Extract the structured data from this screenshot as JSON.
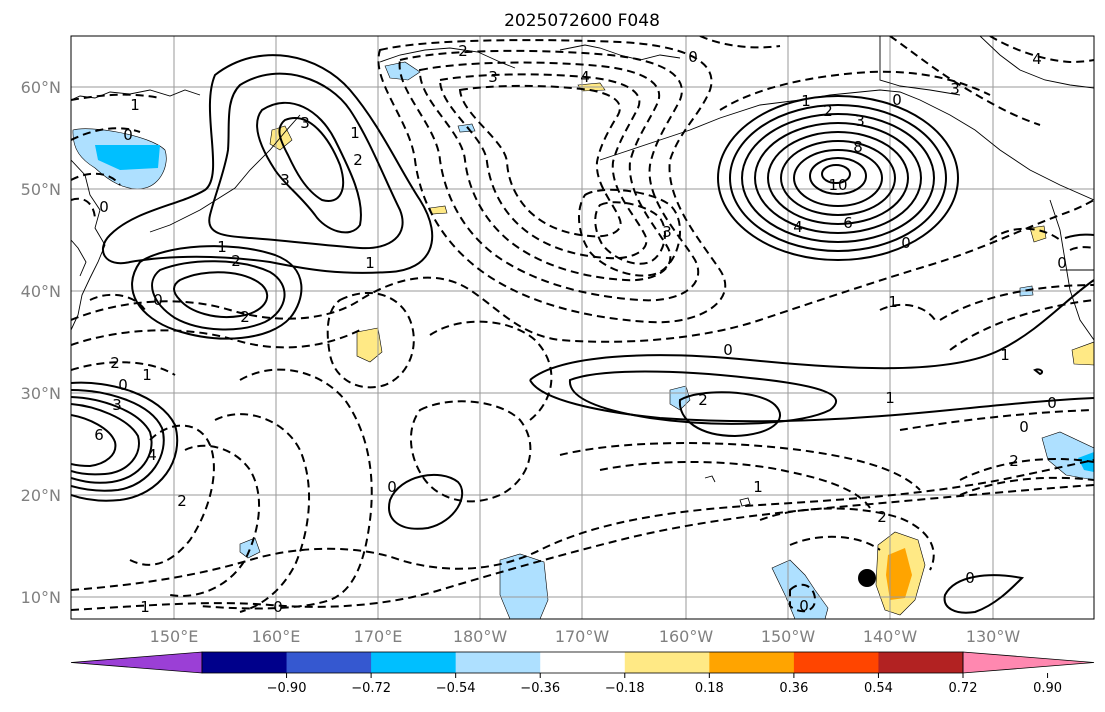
{
  "title": "2025072600 F048",
  "lat_labels": [
    "10°N",
    "20°N",
    "30°N",
    "40°N",
    "50°N",
    "60°N"
  ],
  "lon_labels": [
    "150°E",
    "160°E",
    "170°E",
    "180°W",
    "170°W",
    "160°W",
    "150°W",
    "140°W",
    "130°W"
  ],
  "colorbar": {
    "ticks": [
      "−0.90",
      "−0.72",
      "−0.54",
      "−0.36",
      "−0.18",
      "0.18",
      "0.36",
      "0.54",
      "0.72",
      "0.90"
    ],
    "colors": [
      "#9b3fd6",
      "#00008b",
      "#3558d0",
      "#00bfff",
      "#aee0ff",
      "#ffffff",
      "#ffe985",
      "#ffa400",
      "#ff4500",
      "#b22222",
      "#ff88b0"
    ]
  },
  "contour_labels": {
    "z1": "1",
    "z2": "2",
    "z3": "3",
    "z4": "4",
    "z6": "6",
    "z8": "8",
    "z10": "10",
    "n0": "0",
    "n1": "1",
    "n2": "2",
    "n3": "3",
    "n4": "4",
    "n6": "6"
  },
  "marker": "station-dot"
}
